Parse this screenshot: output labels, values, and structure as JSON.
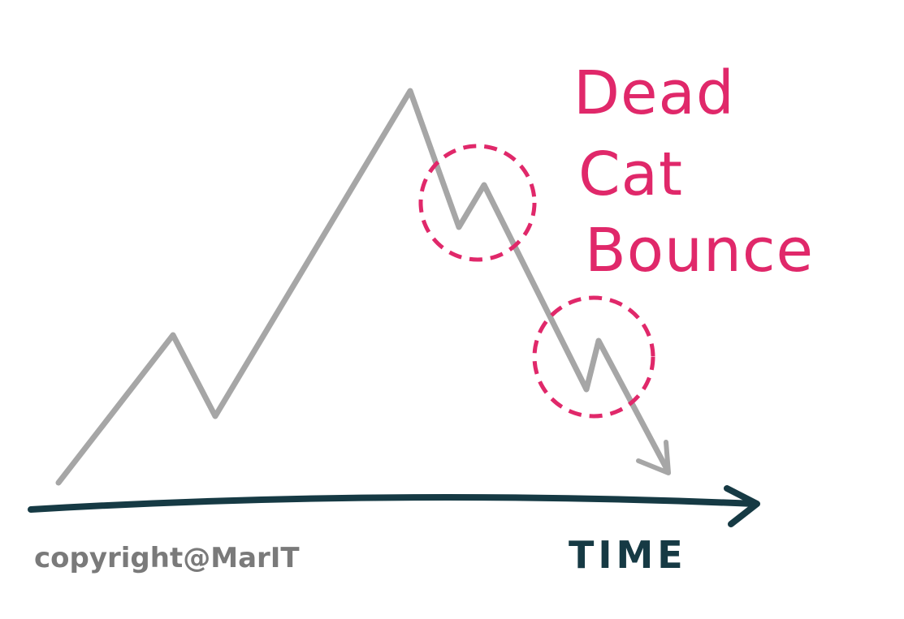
{
  "title_lines": [
    "Dead",
    "Cat",
    "Bounce"
  ],
  "axis_label": "TIME",
  "copyright": "copyright@MarIT",
  "colors": {
    "price_line": "#a6a6a6",
    "accent": "#e0286a",
    "axis": "#163a44",
    "copyright_text": "#7a7a7a"
  },
  "icons": {
    "axis_arrow": "arrow-right-icon",
    "trend_arrow": "arrow-down-right-icon"
  }
}
